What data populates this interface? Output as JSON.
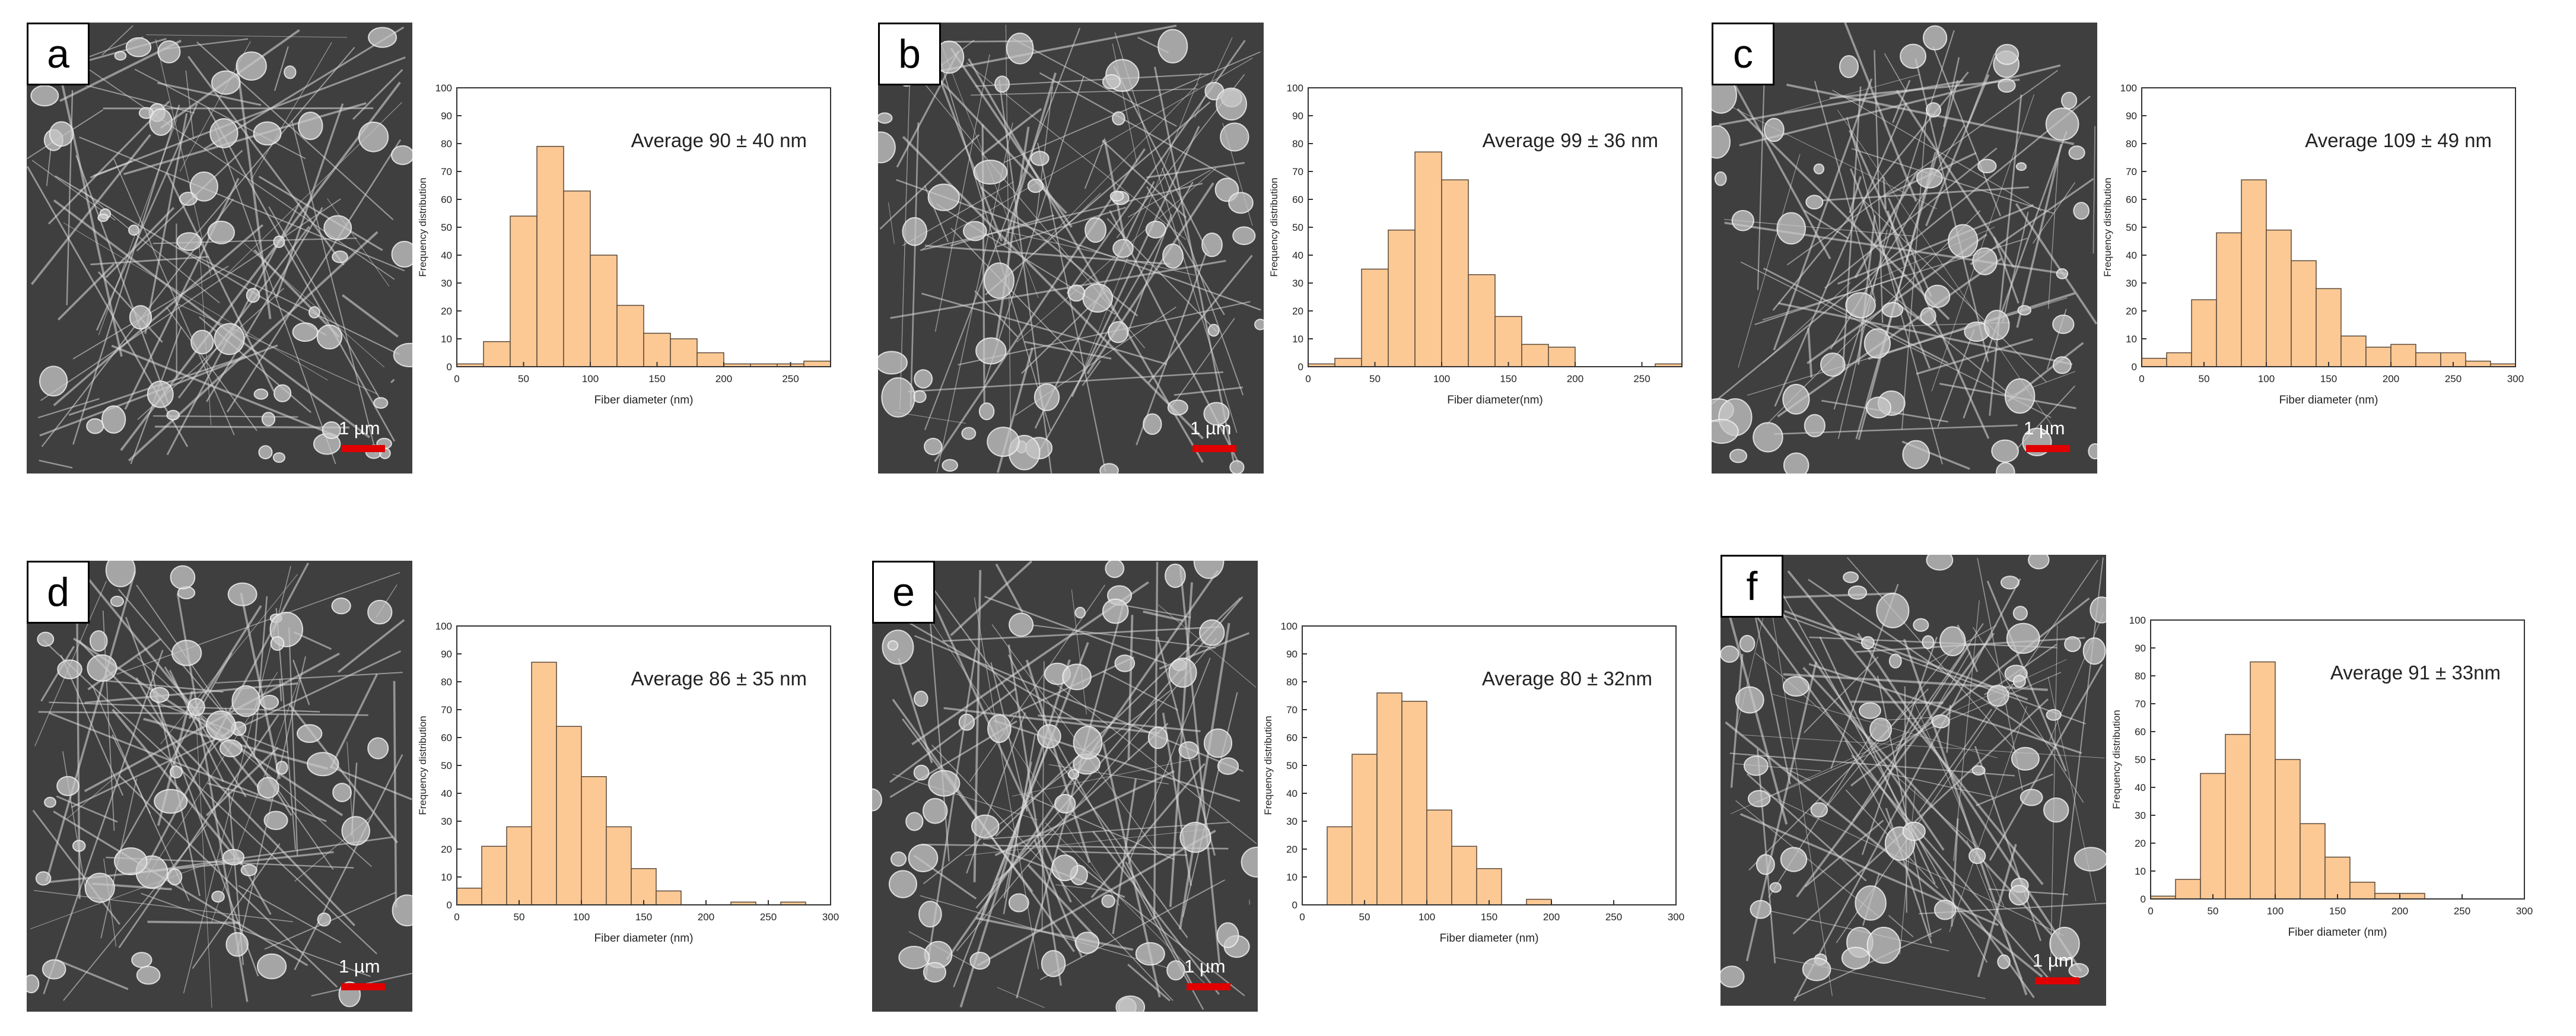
{
  "colors": {
    "bar_fill": "#fcc894",
    "bar_stroke": "#5a4a3a",
    "axis": "#333333",
    "scalebar": "#e00000",
    "sem_bg": "#3f3f3f"
  },
  "panels": [
    {
      "label": "a",
      "scale_label": "1 µm"
    },
    {
      "label": "b",
      "scale_label": "1 µm"
    },
    {
      "label": "c",
      "scale_label": "1 µm"
    },
    {
      "label": "d",
      "scale_label": "1 µm"
    },
    {
      "label": "e",
      "scale_label": "1 µm"
    },
    {
      "label": "f",
      "scale_label": "1 µm"
    }
  ],
  "chart_data": [
    {
      "type": "bar",
      "panel": "a",
      "annotation": "Average 90 ± 40 nm",
      "xlabel": "Fiber diameter (nm)",
      "ylabel": "Frequency distribution",
      "xlim": [
        0,
        280
      ],
      "ylim": [
        0,
        100
      ],
      "xticks": [
        0,
        50,
        100,
        150,
        200,
        250
      ],
      "yticks": [
        0,
        10,
        20,
        30,
        40,
        50,
        60,
        70,
        80,
        90,
        100
      ],
      "bin_width": 20,
      "bin_starts": [
        0,
        20,
        40,
        60,
        80,
        100,
        120,
        140,
        160,
        180,
        200,
        220,
        240,
        260
      ],
      "values": [
        1,
        9,
        54,
        79,
        63,
        40,
        22,
        12,
        10,
        5,
        1,
        1,
        1,
        2
      ]
    },
    {
      "type": "bar",
      "panel": "b",
      "annotation": "Average 99 ± 36 nm",
      "xlabel": "Fiber diameter(nm)",
      "ylabel": "Frequency distribution",
      "xlim": [
        0,
        280
      ],
      "ylim": [
        0,
        100
      ],
      "xticks": [
        0,
        50,
        100,
        150,
        200,
        250
      ],
      "yticks": [
        0,
        10,
        20,
        30,
        40,
        50,
        60,
        70,
        80,
        90,
        100
      ],
      "bin_width": 20,
      "bin_starts": [
        0,
        20,
        40,
        60,
        80,
        100,
        120,
        140,
        160,
        180,
        200,
        220,
        240,
        260
      ],
      "values": [
        1,
        3,
        35,
        49,
        77,
        67,
        33,
        18,
        8,
        7,
        0,
        0,
        0,
        1
      ]
    },
    {
      "type": "bar",
      "panel": "c",
      "annotation": "Average 109 ± 49 nm",
      "xlabel": "Fiber diameter (nm)",
      "ylabel": "Frequency distribution",
      "xlim": [
        0,
        300
      ],
      "ylim": [
        0,
        100
      ],
      "xticks": [
        0,
        50,
        100,
        150,
        200,
        250,
        300
      ],
      "yticks": [
        0,
        10,
        20,
        30,
        40,
        50,
        60,
        70,
        80,
        90,
        100
      ],
      "bin_width": 20,
      "bin_starts": [
        0,
        20,
        40,
        60,
        80,
        100,
        120,
        140,
        160,
        180,
        200,
        220,
        240,
        260,
        280
      ],
      "values": [
        3,
        5,
        24,
        48,
        67,
        49,
        38,
        28,
        11,
        7,
        8,
        5,
        5,
        2,
        1
      ]
    },
    {
      "type": "bar",
      "panel": "d",
      "annotation": "Average 86 ± 35 nm",
      "xlabel": "Fiber diameter (nm)",
      "ylabel": "Frequency distribution",
      "xlim": [
        0,
        300
      ],
      "ylim": [
        0,
        100
      ],
      "xticks": [
        0,
        50,
        100,
        150,
        200,
        250,
        300
      ],
      "yticks": [
        0,
        10,
        20,
        30,
        40,
        50,
        60,
        70,
        80,
        90,
        100
      ],
      "bin_width": 20,
      "bin_starts": [
        0,
        20,
        40,
        60,
        80,
        100,
        120,
        140,
        160,
        180,
        200,
        220,
        240,
        260,
        280
      ],
      "values": [
        6,
        21,
        28,
        87,
        64,
        46,
        28,
        13,
        5,
        0,
        0,
        1,
        0,
        1,
        0
      ]
    },
    {
      "type": "bar",
      "panel": "e",
      "annotation": "Average 80 ± 32nm",
      "xlabel": "Fiber diameter (nm)",
      "ylabel": "Frequency distribution",
      "xlim": [
        0,
        300
      ],
      "ylim": [
        0,
        100
      ],
      "xticks": [
        0,
        50,
        100,
        150,
        200,
        250,
        300
      ],
      "yticks": [
        0,
        10,
        20,
        30,
        40,
        50,
        60,
        70,
        80,
        90,
        100
      ],
      "bin_width": 20,
      "bin_starts": [
        20,
        40,
        60,
        80,
        100,
        120,
        140,
        160,
        180
      ],
      "values": [
        28,
        54,
        76,
        73,
        34,
        21,
        13,
        0,
        2
      ]
    },
    {
      "type": "bar",
      "panel": "f",
      "annotation": "Average 91 ± 33nm",
      "xlabel": "Fiber diameter (nm)",
      "ylabel": "Frequency distribution",
      "xlim": [
        0,
        300
      ],
      "ylim": [
        0,
        100
      ],
      "xticks": [
        0,
        50,
        100,
        150,
        200,
        250,
        300
      ],
      "yticks": [
        0,
        10,
        20,
        30,
        40,
        50,
        60,
        70,
        80,
        90,
        100
      ],
      "bin_width": 20,
      "bin_starts": [
        0,
        20,
        40,
        60,
        80,
        100,
        120,
        140,
        160,
        180,
        200,
        220
      ],
      "values": [
        1,
        7,
        45,
        59,
        85,
        50,
        27,
        15,
        6,
        2,
        2,
        0
      ]
    }
  ]
}
